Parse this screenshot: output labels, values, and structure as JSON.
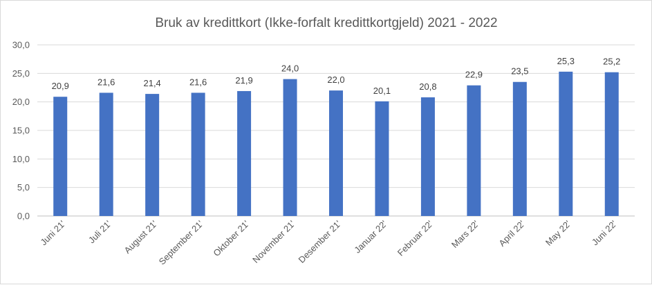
{
  "chart_data": {
    "type": "bar",
    "title": "Bruk av kredittkort (Ikke-forfalt kredittkortgjeld) 2021 - 2022",
    "categories": [
      "Juni 21'",
      "Juli 21'",
      "August 21'",
      "September 21'",
      "Oktober 21'",
      "November 21'",
      "Desember 21'",
      "Januar 22'",
      "Februar 22'",
      "Mars 22'",
      "April 22'",
      "May 22'",
      "Juni 22'"
    ],
    "values": [
      20.9,
      21.6,
      21.4,
      21.6,
      21.9,
      24.0,
      22.0,
      20.1,
      20.8,
      22.9,
      23.5,
      25.3,
      25.2
    ],
    "value_labels": [
      "20,9",
      "21,6",
      "21,4",
      "21,6",
      "21,9",
      "24,0",
      "22,0",
      "20,1",
      "20,8",
      "22,9",
      "23,5",
      "25,3",
      "25,2"
    ],
    "y_ticks": [
      0,
      5,
      10,
      15,
      20,
      25,
      30
    ],
    "y_tick_labels": [
      "0,0",
      "5,0",
      "10,0",
      "15,0",
      "20,0",
      "25,0",
      "30,0"
    ],
    "ylim": [
      0,
      30
    ],
    "xlabel": "",
    "ylabel": "",
    "grid": true,
    "legend": "none",
    "bar_color": "#4472c4"
  }
}
